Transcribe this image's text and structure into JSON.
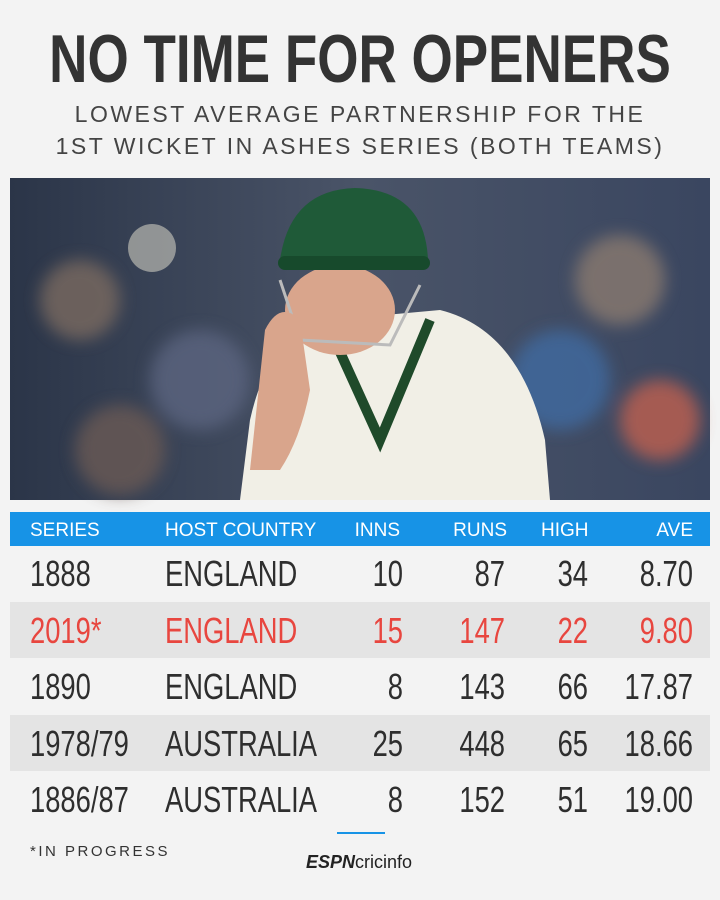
{
  "title": "NO TIME FOR OPENERS",
  "subtitle": [
    "LOWEST AVERAGE PARTNERSHIP FOR THE",
    "1ST WICKET IN ASHES SERIES (BOTH TEAMS)"
  ],
  "table": {
    "header": [
      "SERIES",
      "HOST COUNTRY",
      "INNS",
      "RUNS",
      "HIGH",
      "AVE"
    ],
    "rows": [
      [
        "1888",
        "ENGLAND",
        "10",
        "87",
        "34",
        "8.70"
      ],
      [
        "2019*",
        "ENGLAND",
        "15",
        "147",
        "22",
        "9.80"
      ],
      [
        "1890",
        "ENGLAND",
        "8",
        "143",
        "66",
        "17.87"
      ],
      [
        "1978/79",
        "AUSTRALIA",
        "25",
        "448",
        "65",
        "18.66"
      ],
      [
        "1886/87",
        "AUSTRALIA",
        "8",
        "152",
        "51",
        "19.00"
      ]
    ]
  },
  "footnote": "*IN PROGRESS",
  "logo": [
    "ESPN",
    "cricinfo"
  ]
}
